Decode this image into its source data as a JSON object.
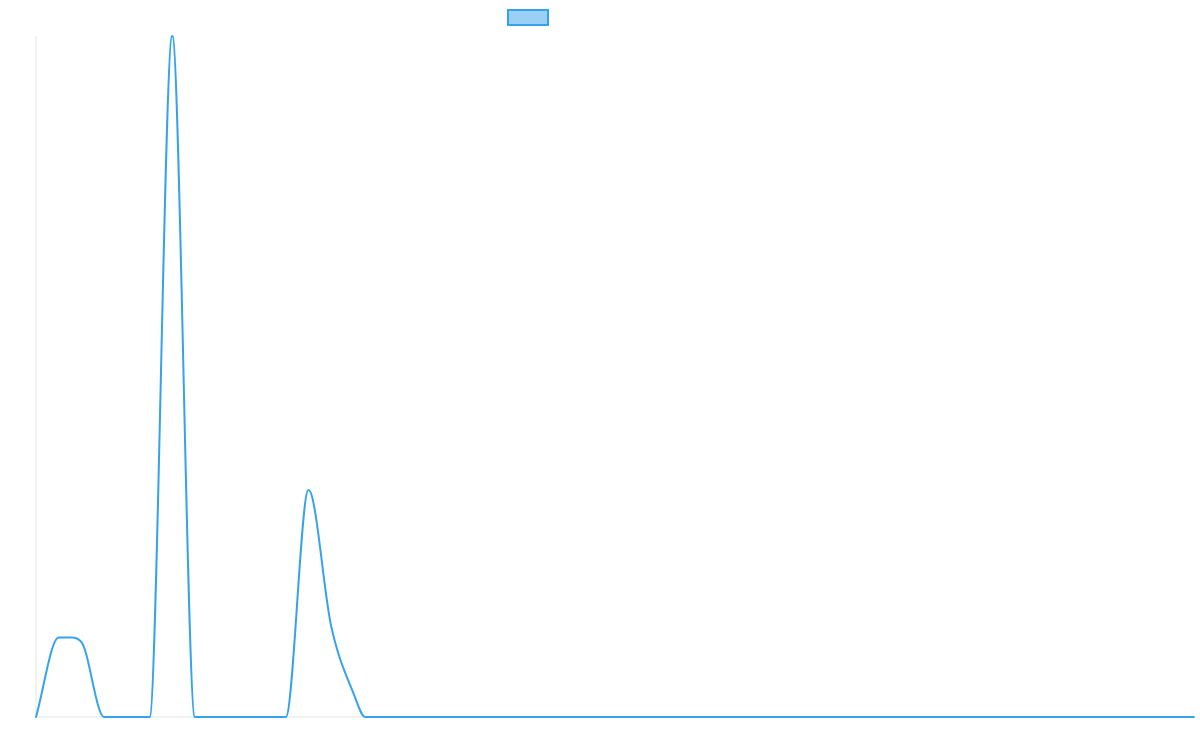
{
  "chart_data": {
    "type": "line",
    "title": "",
    "xlabel": "",
    "ylabel": "",
    "legend": {
      "placement": "top-center",
      "entries": [
        {
          "name": ""
        }
      ]
    },
    "grid": false,
    "xlim": [
      0,
      51
    ],
    "ylim": [
      0,
      30
    ],
    "series": [
      {
        "name": "",
        "color": "#36a2eb",
        "fill": "#9ad0f5",
        "curve": "monotone",
        "values": [
          [
            0,
            0
          ],
          [
            1,
            3.5
          ],
          [
            1.5,
            3.5
          ],
          [
            2,
            3.3
          ],
          [
            3,
            0
          ],
          [
            5,
            0
          ],
          [
            6,
            30
          ],
          [
            7,
            0
          ],
          [
            11,
            0
          ],
          [
            12,
            10
          ],
          [
            13,
            4
          ],
          [
            14,
            1
          ],
          [
            14.5,
            0
          ],
          [
            51,
            0
          ]
        ]
      }
    ]
  }
}
